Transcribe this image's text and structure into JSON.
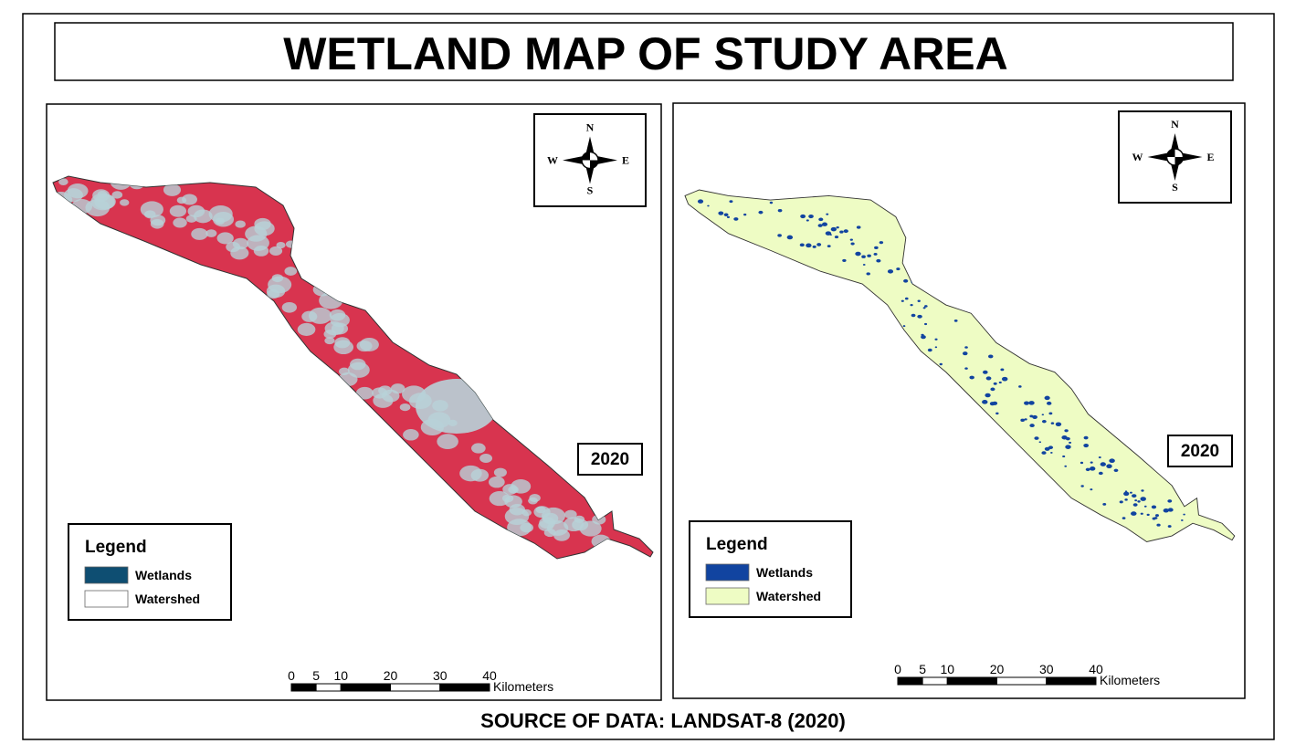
{
  "title": "WETLAND MAP OF STUDY AREA",
  "source": "SOURCE OF DATA: LANDSAT-8 (2020)",
  "panels": [
    {
      "year": "2020",
      "compass": {
        "n": "N",
        "e": "E",
        "s": "S",
        "w": "W"
      },
      "legend": {
        "title": "Legend",
        "items": [
          {
            "label": "Wetlands",
            "color": "#0e4e72"
          },
          {
            "label": "Watershed",
            "color": "#ffffff"
          }
        ]
      },
      "scale": {
        "ticks": [
          0,
          5,
          10,
          20,
          30,
          40
        ],
        "unit": "Kilometers"
      }
    },
    {
      "year": "2020",
      "compass": {
        "n": "N",
        "e": "E",
        "s": "S",
        "w": "W"
      },
      "legend": {
        "title": "Legend",
        "items": [
          {
            "label": "Wetlands",
            "color": "#1144a0"
          },
          {
            "label": "Watershed",
            "color": "#eefcc4"
          }
        ]
      },
      "scale": {
        "ticks": [
          0,
          5,
          10,
          20,
          30,
          40
        ],
        "unit": "Kilometers"
      }
    }
  ]
}
